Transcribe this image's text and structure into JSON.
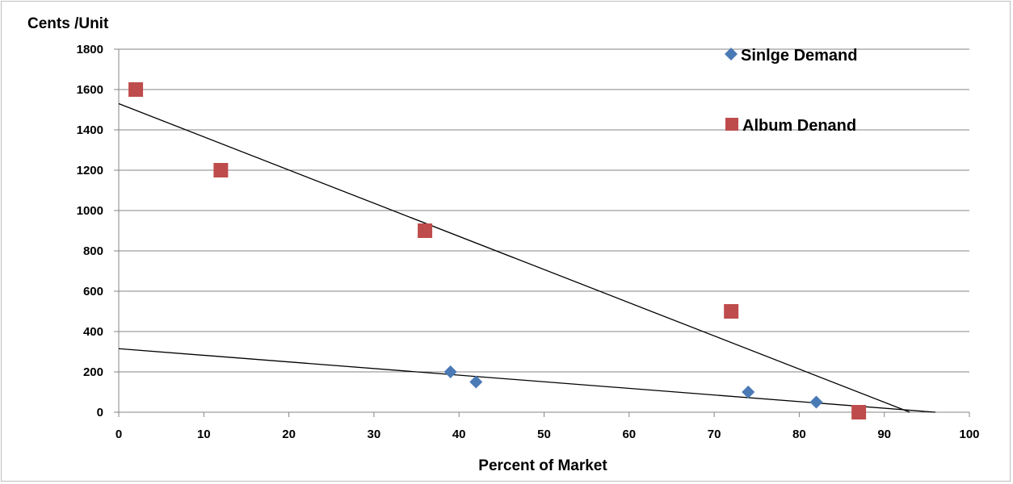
{
  "chart_data": {
    "type": "scatter",
    "xlabel": "Percent of Market",
    "ylabel": "Cents /Unit",
    "xlim": [
      0,
      100
    ],
    "ylim": [
      0,
      1800
    ],
    "xticks": [
      0,
      10,
      20,
      30,
      40,
      50,
      60,
      70,
      80,
      90,
      100
    ],
    "yticks": [
      0,
      200,
      400,
      600,
      800,
      1000,
      1200,
      1400,
      1600,
      1800
    ],
    "grid": "horizontal",
    "legend_position": "top-right",
    "series": [
      {
        "name": "Sinlge Demand",
        "marker": "diamond",
        "color": "#4a7ab5",
        "x": [
          39,
          42,
          74,
          82
        ],
        "y": [
          200,
          150,
          100,
          50
        ],
        "trendline": {
          "x": [
            0,
            96
          ],
          "y": [
            315,
            0
          ]
        }
      },
      {
        "name": "Album Denand",
        "marker": "square",
        "color": "#bf4c4c",
        "x": [
          2,
          12,
          36,
          72,
          87
        ],
        "y": [
          1600,
          1200,
          900,
          500,
          0
        ],
        "trendline": {
          "x": [
            0,
            93
          ],
          "y": [
            1530,
            0
          ]
        }
      }
    ]
  }
}
